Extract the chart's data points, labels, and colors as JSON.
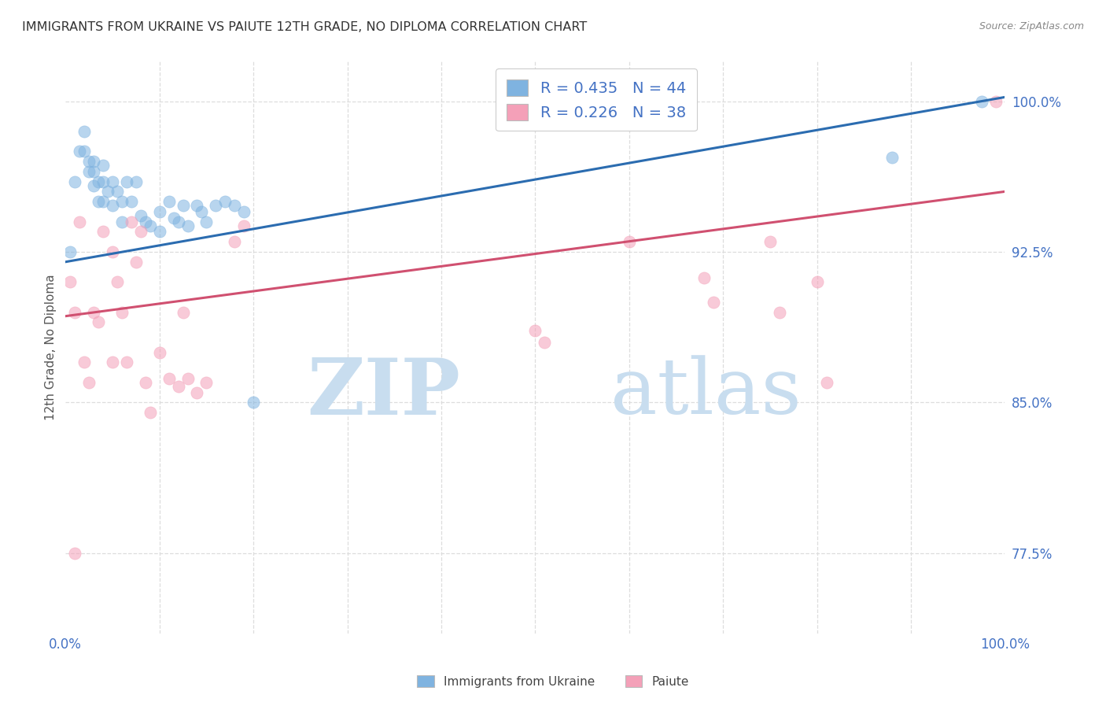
{
  "title": "IMMIGRANTS FROM UKRAINE VS PAIUTE 12TH GRADE, NO DIPLOMA CORRELATION CHART",
  "source": "Source: ZipAtlas.com",
  "ylabel": "12th Grade, No Diploma",
  "legend_label1": "Immigrants from Ukraine",
  "legend_label2": "Paiute",
  "R1": 0.435,
  "N1": 44,
  "R2": 0.226,
  "N2": 38,
  "ytick_labels": [
    "77.5%",
    "85.0%",
    "92.5%",
    "100.0%"
  ],
  "ytick_values": [
    0.775,
    0.85,
    0.925,
    1.0
  ],
  "xlim": [
    0.0,
    1.0
  ],
  "ylim": [
    0.735,
    1.02
  ],
  "watermark_zip": "ZIP",
  "watermark_atlas": "atlas",
  "blue_scatter_color": "#7FB3E0",
  "pink_scatter_color": "#F4A0B8",
  "blue_line_color": "#2B6CB0",
  "pink_line_color": "#D05070",
  "title_color": "#333333",
  "axis_label_color": "#4472C4",
  "grid_color": "#DDDDDD",
  "ukraine_points_x": [
    0.005,
    0.01,
    0.015,
    0.02,
    0.02,
    0.025,
    0.025,
    0.03,
    0.03,
    0.03,
    0.035,
    0.035,
    0.04,
    0.04,
    0.04,
    0.045,
    0.05,
    0.05,
    0.055,
    0.06,
    0.06,
    0.065,
    0.07,
    0.075,
    0.08,
    0.085,
    0.09,
    0.1,
    0.1,
    0.11,
    0.115,
    0.12,
    0.125,
    0.13,
    0.14,
    0.145,
    0.15,
    0.16,
    0.17,
    0.18,
    0.19,
    0.2,
    0.88,
    0.975
  ],
  "ukraine_points_y": [
    0.925,
    0.96,
    0.975,
    0.975,
    0.985,
    0.97,
    0.965,
    0.965,
    0.97,
    0.958,
    0.96,
    0.95,
    0.968,
    0.96,
    0.95,
    0.955,
    0.96,
    0.948,
    0.955,
    0.95,
    0.94,
    0.96,
    0.95,
    0.96,
    0.943,
    0.94,
    0.938,
    0.945,
    0.935,
    0.95,
    0.942,
    0.94,
    0.948,
    0.938,
    0.948,
    0.945,
    0.94,
    0.948,
    0.95,
    0.948,
    0.945,
    0.85,
    0.972,
    1.0
  ],
  "paiute_points_x": [
    0.005,
    0.01,
    0.01,
    0.015,
    0.02,
    0.025,
    0.03,
    0.035,
    0.04,
    0.05,
    0.05,
    0.055,
    0.06,
    0.065,
    0.07,
    0.075,
    0.08,
    0.085,
    0.09,
    0.1,
    0.11,
    0.12,
    0.125,
    0.13,
    0.14,
    0.15,
    0.18,
    0.19,
    0.5,
    0.51,
    0.6,
    0.68,
    0.69,
    0.75,
    0.76,
    0.8,
    0.81,
    0.99
  ],
  "paiute_points_y": [
    0.91,
    0.895,
    0.775,
    0.94,
    0.87,
    0.86,
    0.895,
    0.89,
    0.935,
    0.925,
    0.87,
    0.91,
    0.895,
    0.87,
    0.94,
    0.92,
    0.935,
    0.86,
    0.845,
    0.875,
    0.862,
    0.858,
    0.895,
    0.862,
    0.855,
    0.86,
    0.93,
    0.938,
    0.886,
    0.88,
    0.93,
    0.912,
    0.9,
    0.93,
    0.895,
    0.91,
    0.86,
    1.0
  ],
  "blue_trend_y_start": 0.92,
  "blue_trend_y_end": 1.002,
  "pink_trend_y_start": 0.893,
  "pink_trend_y_end": 0.955
}
